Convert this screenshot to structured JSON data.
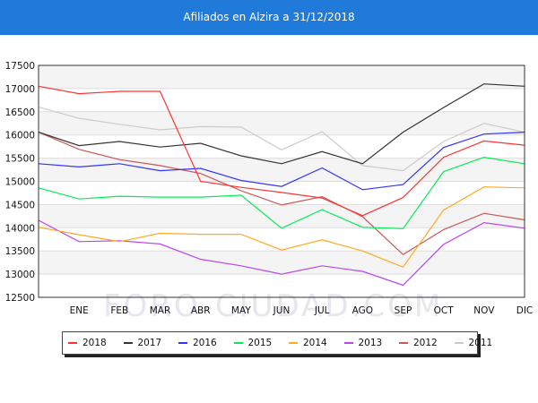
{
  "chart_data": {
    "type": "line",
    "title": "Afiliados en Alzira a 31/12/2018",
    "categories": [
      "",
      "ENE",
      "FEB",
      "MAR",
      "ABR",
      "MAY",
      "JUN",
      "JUL",
      "AGO",
      "SEP",
      "OCT",
      "NOV",
      "DIC"
    ],
    "ylim": [
      12500,
      17500
    ],
    "yticks": [
      12500,
      13000,
      13500,
      14000,
      14500,
      15000,
      15500,
      16000,
      16500,
      17000,
      17500
    ],
    "grid": "horizontal bands",
    "legend_position": "bottom",
    "watermark": "FORO-CIUDAD.COM",
    "series": [
      {
        "name": "2018",
        "color": "#ff3333",
        "values": [
          17050,
          16890,
          16940,
          16940,
          15000,
          14870,
          14760,
          14640,
          14260,
          14650,
          15520,
          15870,
          15780
        ]
      },
      {
        "name": "2017",
        "color": "#333333",
        "values": [
          16060,
          15770,
          15860,
          15740,
          15820,
          15550,
          15380,
          15640,
          15380,
          16060,
          16590,
          17100,
          17050
        ]
      },
      {
        "name": "2016",
        "color": "#3333ff",
        "values": [
          15380,
          15310,
          15380,
          15230,
          15280,
          15020,
          14890,
          15290,
          14820,
          14930,
          15730,
          16020,
          16060
        ]
      },
      {
        "name": "2015",
        "color": "#00ee55",
        "values": [
          14860,
          14620,
          14680,
          14660,
          14660,
          14700,
          13990,
          14390,
          14010,
          13980,
          15210,
          15520,
          15380
        ]
      },
      {
        "name": "2014",
        "color": "#ffaa22",
        "values": [
          14010,
          13850,
          13700,
          13880,
          13860,
          13860,
          13520,
          13740,
          13500,
          13150,
          14380,
          14880,
          14860
        ]
      },
      {
        "name": "2013",
        "color": "#bb44ee",
        "values": [
          14160,
          13700,
          13720,
          13650,
          13320,
          13180,
          13000,
          13180,
          13060,
          12760,
          13640,
          14110,
          13990
        ]
      },
      {
        "name": "2012",
        "color": "#cc5555",
        "values": [
          16060,
          15690,
          15470,
          15340,
          15170,
          14800,
          14490,
          14670,
          14240,
          13420,
          13960,
          14310,
          14170
        ]
      },
      {
        "name": "2011",
        "color": "#cccccc",
        "values": [
          16600,
          16360,
          16230,
          16110,
          16180,
          16170,
          15680,
          16070,
          15340,
          15230,
          15860,
          16250,
          16060
        ]
      }
    ]
  }
}
